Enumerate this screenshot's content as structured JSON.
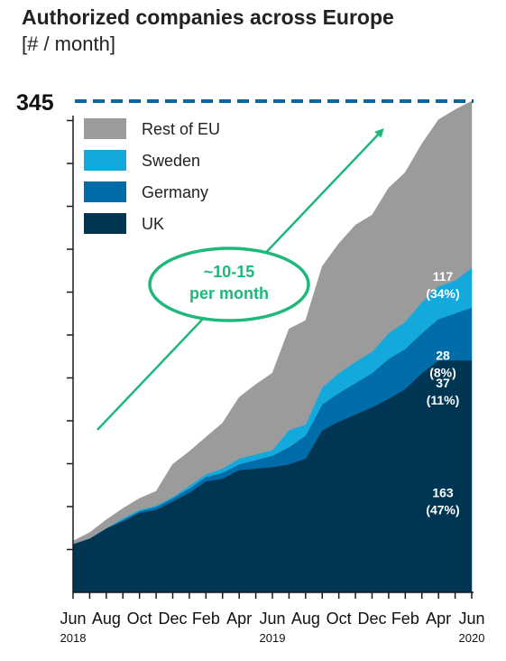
{
  "title": "Authorized companies across Europe",
  "subtitle": "[# / month]",
  "chart_data": {
    "type": "area",
    "stacked": true,
    "x": [
      "Jun 2018",
      "Jul 2018",
      "Aug 2018",
      "Sep 2018",
      "Oct 2018",
      "Nov 2018",
      "Dec 2018",
      "Jan 2019",
      "Feb 2019",
      "Mar 2019",
      "Apr 2019",
      "May 2019",
      "Jun 2019",
      "Jul 2019",
      "Aug 2019",
      "Sep 2019",
      "Oct 2019",
      "Nov 2019",
      "Dec 2019",
      "Jan 2020",
      "Feb 2020",
      "Mar 2020",
      "Apr 2020",
      "May 2020",
      "Jun 2020"
    ],
    "x_tick_labels": [
      "Jun",
      "Aug",
      "Oct",
      "Dec",
      "Feb",
      "Apr",
      "Jun",
      "Aug",
      "Oct",
      "Dec",
      "Feb",
      "Apr",
      "Jun"
    ],
    "x_year_labels": [
      {
        "label": "2018",
        "at": "Jun 2018"
      },
      {
        "label": "2019",
        "at": "Jun 2019"
      },
      {
        "label": "2020",
        "at": "Jun 2020"
      }
    ],
    "series": [
      {
        "name": "UK",
        "color": "#003654",
        "values": [
          34,
          38,
          45,
          50,
          56,
          58,
          64,
          70,
          78,
          80,
          86,
          87,
          88,
          90,
          94,
          114,
          120,
          125,
          130,
          136,
          143,
          154,
          163,
          163,
          163
        ]
      },
      {
        "name": "Germany",
        "color": "#006DA8",
        "values": [
          0,
          0,
          0,
          1,
          1,
          2,
          2,
          3,
          3,
          4,
          4,
          6,
          8,
          12,
          16,
          18,
          20,
          22,
          24,
          28,
          28,
          28,
          29,
          33,
          37
        ]
      },
      {
        "name": "Sweden",
        "color": "#13A9DD",
        "values": [
          0,
          0,
          0,
          1,
          1,
          1,
          1,
          2,
          2,
          3,
          4,
          4,
          4,
          12,
          8,
          12,
          14,
          15,
          15,
          18,
          19,
          22,
          23,
          23,
          28
        ]
      },
      {
        "name": "Rest of EU",
        "color": "#9B9B9B",
        "values": [
          2,
          4,
          6,
          7,
          8,
          10,
          23,
          24,
          26,
          32,
          43,
          49,
          54,
          71,
          73,
          85,
          91,
          96,
          96,
          102,
          105,
          111,
          117,
          120,
          117
        ]
      }
    ],
    "ylim": [
      0,
      345
    ],
    "reference_line": {
      "value": 345,
      "label": "345",
      "color": "#0067A5",
      "style": "dashed"
    },
    "segment_labels": [
      {
        "series": "Rest of EU",
        "value": "117",
        "share": "(34%)"
      },
      {
        "series": "Sweden",
        "value": "28",
        "share": "(8%)"
      },
      {
        "series": "Germany",
        "value": "37",
        "share": "(11%)"
      },
      {
        "series": "UK",
        "value": "163",
        "share": "(47%)"
      }
    ],
    "legend": {
      "placement": "top-left",
      "order": [
        "Rest of EU",
        "Sweden",
        "Germany",
        "UK"
      ]
    },
    "annotation": {
      "line1": "~10-15",
      "line2": "per month",
      "color": "#1DB87A"
    }
  }
}
